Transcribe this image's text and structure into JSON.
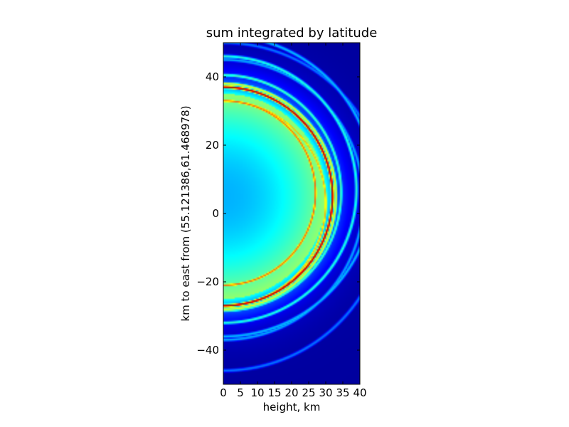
{
  "chart_data": {
    "type": "heatmap",
    "title": "sum integrated by latitude",
    "xlabel": "height, km",
    "ylabel": "km to east from (55.121386,61.468978)",
    "xlim": [
      0,
      40
    ],
    "ylim": [
      -50,
      50
    ],
    "xticks": [
      0,
      5,
      10,
      15,
      20,
      25,
      30,
      35,
      40
    ],
    "yticks": [
      -40,
      -20,
      0,
      20,
      40
    ],
    "colormap": "jet",
    "grid": false,
    "legend": "none",
    "background_color": "#00008f",
    "rings": [
      {
        "cx": 0,
        "cy": 5,
        "r": 32,
        "intensity": 0.98
      },
      {
        "cx": 0,
        "cy": 6,
        "r": 27,
        "intensity": 0.78
      },
      {
        "cx": 0,
        "cy": 3,
        "r": 30,
        "intensity": 0.7
      },
      {
        "cx": 0,
        "cy": 5,
        "r": 33,
        "intensity": 0.62
      },
      {
        "cx": 0,
        "cy": 6,
        "r": 34.5,
        "intensity": 0.45
      },
      {
        "cx": 0,
        "cy": 7,
        "r": 39,
        "intensity": 0.42
      },
      {
        "cx": 0,
        "cy": 8,
        "r": 44,
        "intensity": 0.32
      },
      {
        "cx": 0,
        "cy": 4,
        "r": 41,
        "intensity": 0.3
      },
      {
        "cx": 0,
        "cy": 2,
        "r": 48,
        "intensity": 0.25
      }
    ],
    "disk": {
      "cx": 0,
      "cy": 5,
      "r": 30,
      "center_intensity": 0.3,
      "edge_intensity": 0.52
    }
  }
}
